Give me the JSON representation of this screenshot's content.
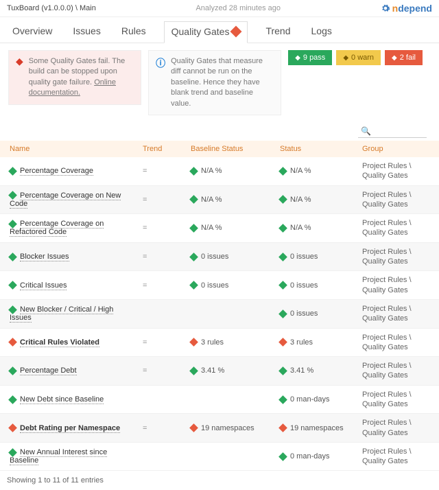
{
  "header": {
    "breadcrumb": "TuxBoard (v1.0.0.0) \\ Main",
    "analyzed": "Analyzed 28 minutes ago",
    "logo_n": "n",
    "logo_rest": "depend"
  },
  "tabs": {
    "overview": "Overview",
    "issues": "Issues",
    "rules": "Rules",
    "qg": "Quality Gates",
    "trend": "Trend",
    "logs": "Logs"
  },
  "banners": {
    "fail": "Some Quality Gates fail. The build can be stopped upon quality gate failure.",
    "fail_link": "Online documentation.",
    "info": "Quality Gates that measure diff cannot be run on the baseline. Hence they have blank trend and baseline value."
  },
  "chips": {
    "pass": "9 pass",
    "warn": "0 warn",
    "fail": "2 fail"
  },
  "columns": {
    "name": "Name",
    "trend": "Trend",
    "baseline": "Baseline Status",
    "status": "Status",
    "group": "Group"
  },
  "group_text": "Project Rules \\ Quality Gates",
  "search_icon": "🔍",
  "rows": [
    {
      "kind": "pass",
      "bold": false,
      "name": "Percentage Coverage",
      "trend": "=",
      "baseline": "N/A %",
      "status": "N/A %",
      "b_kind": "pass",
      "s_kind": "pass"
    },
    {
      "kind": "pass",
      "bold": false,
      "name": "Percentage Coverage on New Code",
      "trend": "=",
      "baseline": "N/A %",
      "status": "N/A %",
      "b_kind": "pass",
      "s_kind": "pass"
    },
    {
      "kind": "pass",
      "bold": false,
      "name": "Percentage Coverage on Refactored Code",
      "trend": "=",
      "baseline": "N/A %",
      "status": "N/A %",
      "b_kind": "pass",
      "s_kind": "pass"
    },
    {
      "kind": "pass",
      "bold": false,
      "name": "Blocker Issues",
      "trend": "=",
      "baseline": "0 issues",
      "status": "0 issues",
      "b_kind": "pass",
      "s_kind": "pass"
    },
    {
      "kind": "pass",
      "bold": false,
      "name": "Critical Issues",
      "trend": "=",
      "baseline": "0 issues",
      "status": "0 issues",
      "b_kind": "pass",
      "s_kind": "pass"
    },
    {
      "kind": "pass",
      "bold": false,
      "name": "New Blocker / Critical / High Issues",
      "trend": "",
      "baseline": "",
      "status": "0 issues",
      "b_kind": "",
      "s_kind": "pass"
    },
    {
      "kind": "fail",
      "bold": true,
      "name": "Critical Rules Violated",
      "trend": "=",
      "baseline": "3 rules",
      "status": "3 rules",
      "b_kind": "fail",
      "s_kind": "fail"
    },
    {
      "kind": "pass",
      "bold": false,
      "name": "Percentage Debt",
      "trend": "=",
      "baseline": "3.41 %",
      "status": "3.41 %",
      "b_kind": "pass",
      "s_kind": "pass"
    },
    {
      "kind": "pass",
      "bold": false,
      "name": "New Debt since Baseline",
      "trend": "",
      "baseline": "",
      "status": "0 man-days",
      "b_kind": "",
      "s_kind": "pass"
    },
    {
      "kind": "fail",
      "bold": true,
      "name": "Debt Rating per Namespace",
      "trend": "=",
      "baseline": "19 namespaces",
      "status": "19 namespaces",
      "b_kind": "fail",
      "s_kind": "fail"
    },
    {
      "kind": "pass",
      "bold": false,
      "name": "New Annual Interest since Baseline",
      "trend": "",
      "baseline": "",
      "status": "0 man-days",
      "b_kind": "",
      "s_kind": "pass"
    }
  ],
  "footer": "Showing 1 to 11 of 11 entries"
}
